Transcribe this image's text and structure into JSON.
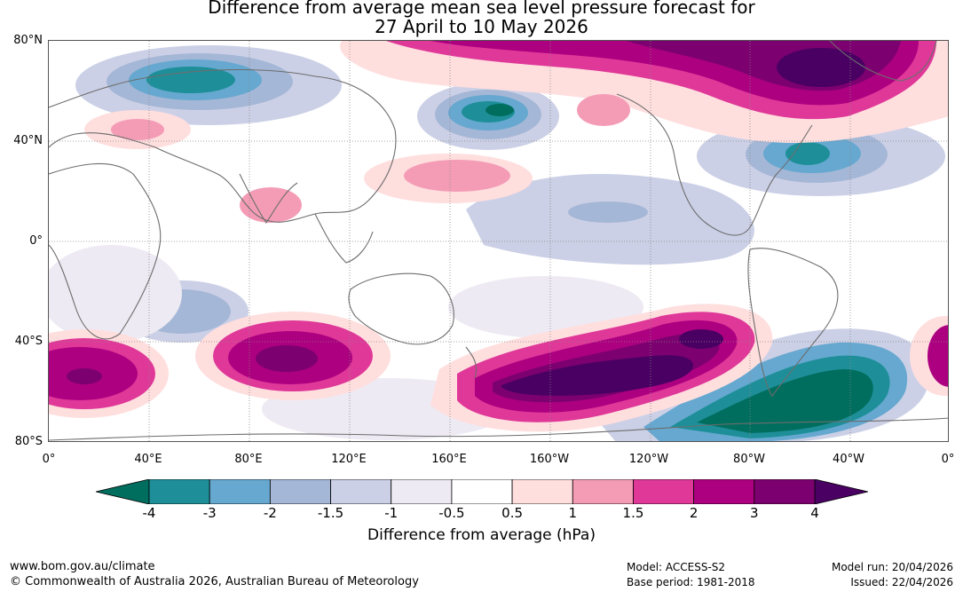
{
  "title": {
    "line1": "Difference from average mean sea level pressure forecast for",
    "line2": "27 April to 10 May 2026"
  },
  "latitude_labels": [
    "80°N",
    "40°N",
    "0°",
    "40°S",
    "80°S"
  ],
  "longitude_labels": [
    "0°",
    "40°E",
    "80°E",
    "120°E",
    "160°E",
    "160°W",
    "120°W",
    "80°W",
    "40°W",
    "0°"
  ],
  "colorbar": {
    "title": "Difference from average (hPa)",
    "tick_labels": [
      "-4",
      "-3",
      "-2",
      "-1.5",
      "-1",
      "-0.5",
      "0.5",
      "1",
      "1.5",
      "2",
      "3",
      "4"
    ],
    "colors": [
      "#006e5e",
      "#1e8f99",
      "#66a8d0",
      "#a5b7d6",
      "#ccd0e6",
      "#eeeaf3",
      "#ffffff",
      "#ffdede",
      "#f49cb6",
      "#df3898",
      "#ad0080",
      "#7d0070",
      "#4a0063"
    ]
  },
  "footer": {
    "website": "www.bom.gov.au/climate",
    "copyright": "© Commonwealth of Australia 2026, Australian Bureau of Meteorology",
    "model": "Model: ACCESS-S2",
    "base_period": "Base period: 1981-2018",
    "model_run": "Model run: 20/04/2026",
    "issued": "Issued: 22/04/2026"
  }
}
